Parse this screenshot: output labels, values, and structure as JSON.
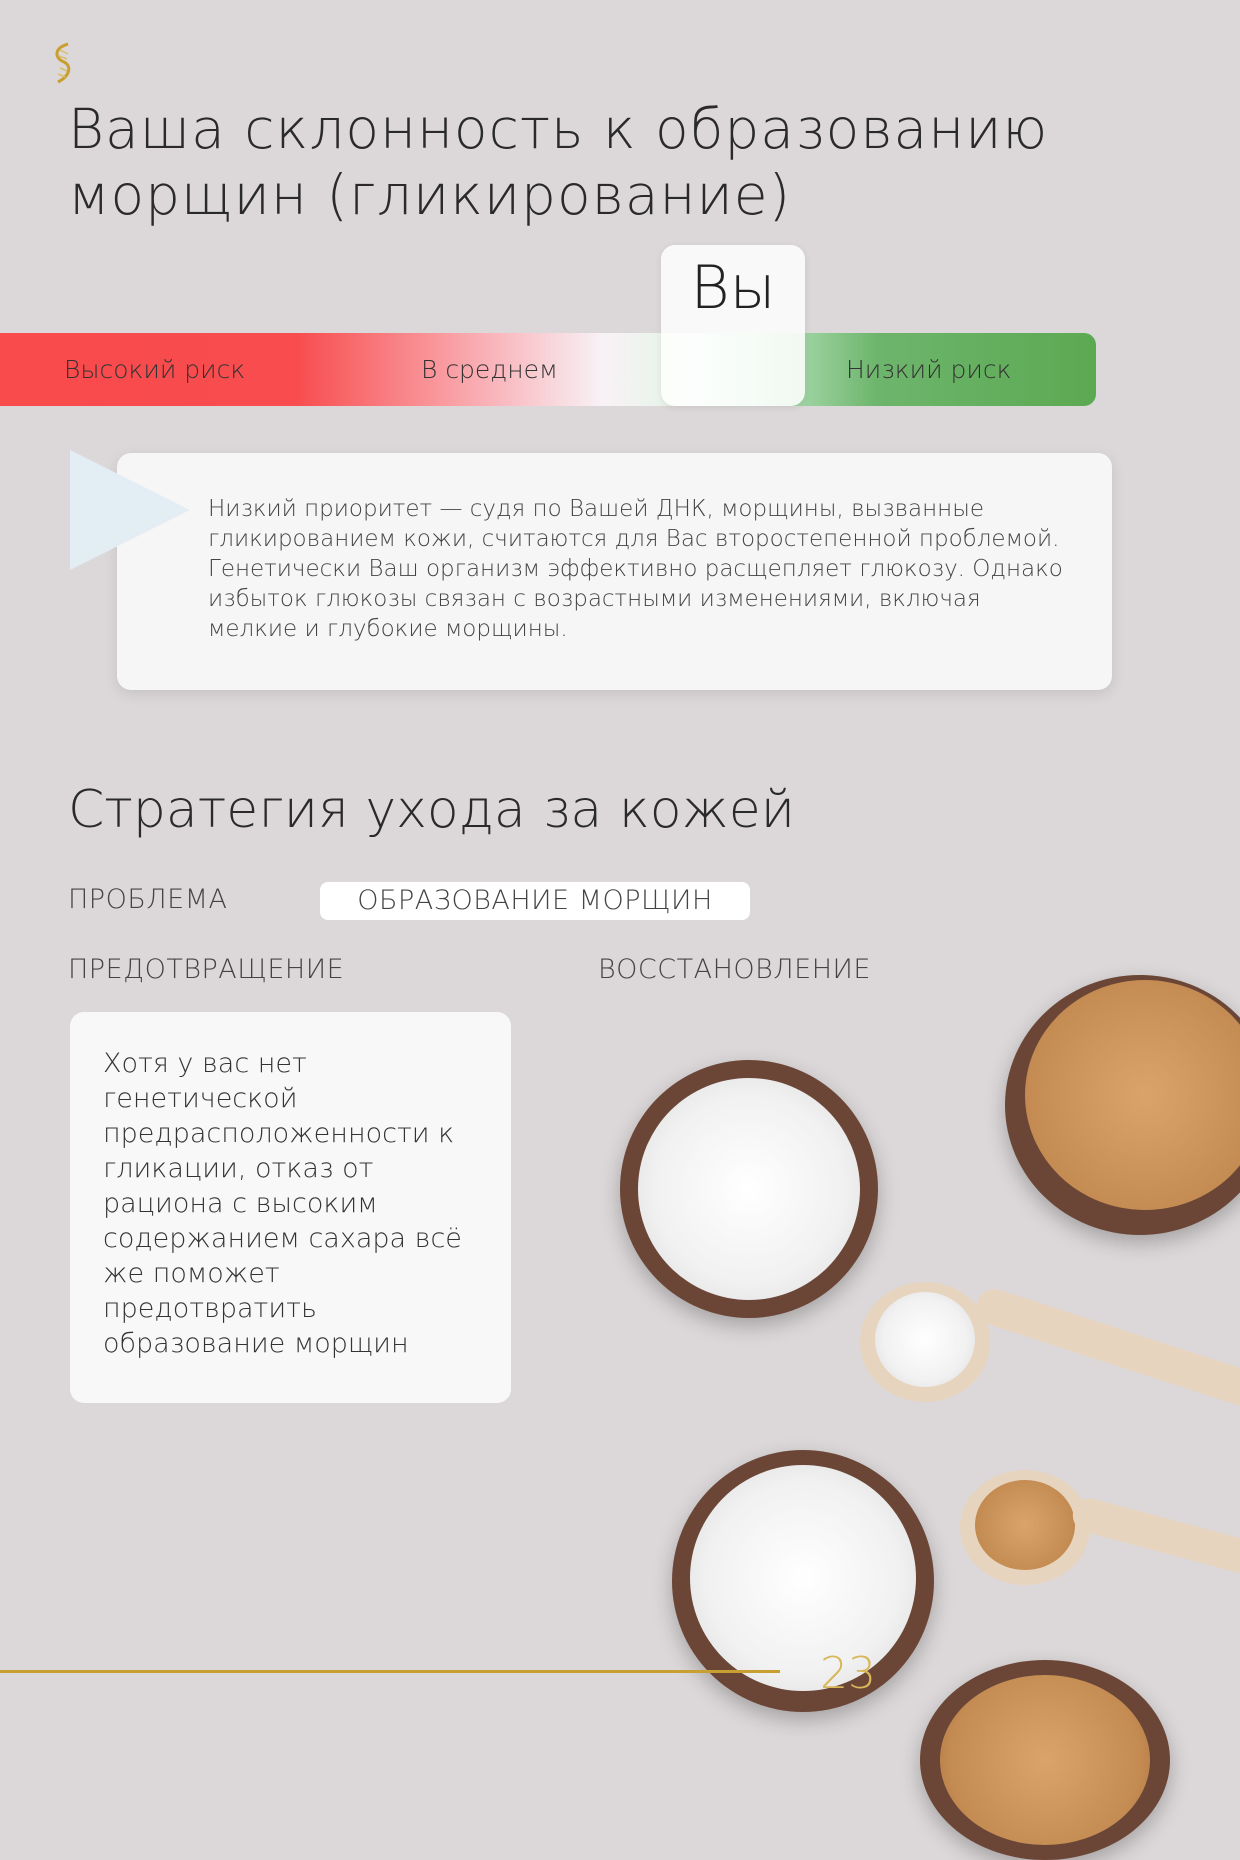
{
  "header": {
    "logo_icon": "dna-helix-icon",
    "accent": "#c8a032"
  },
  "title": "Ваша склонность к образованию морщин (гликирование)",
  "risk_scale": {
    "labels": {
      "high": "Высокий риск",
      "average": "В среднем",
      "low": "Низкий риск"
    },
    "marker_label": "Вы",
    "marker_position": "low",
    "colors": {
      "high": "#f94a4c",
      "average": "#f8f2f6",
      "low": "#5ca952"
    }
  },
  "result": {
    "text": "Низкий приоритет — судя по Вашей ДНК, морщины, вызванные гликированием кожи, считаются для Вас второстепенной проблемой. Генетически Ваш организм эффективно расщепляет глюкозу. Однако избыток глюкозы связан с возрастными изменениями, включая мелкие и глубокие морщины."
  },
  "strategy": {
    "title": "Стратегия ухода за кожей",
    "problem_label": "ПРОБЛЕМА",
    "problem_value": "ОБРАЗОВАНИЕ МОРЩИН",
    "prevention_label": "ПРЕДОТВРАЩЕНИЕ",
    "recovery_label": "ВОССТАНОВЛЕНИЕ",
    "prevention_text": "Хотя у вас нет генетической предрасположенности к гликации, отказ от рациона с высоким содержанием сахара всё же поможет предотвратить образование морщин"
  },
  "footer": {
    "page_number": "23"
  }
}
